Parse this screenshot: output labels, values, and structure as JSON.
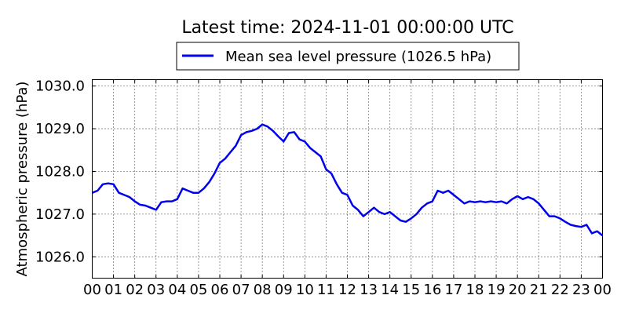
{
  "chart_data": {
    "type": "line",
    "title": "Latest time: 2024-11-01 00:00:00 UTC",
    "xlabel": "",
    "ylabel": "Atmospheric pressure (hPa)",
    "xlim": [
      0,
      24
    ],
    "ylim": [
      1025.5,
      1030.15
    ],
    "grid": true,
    "grid_style": "dotted",
    "legend_position": "top-center",
    "x_ticks": [
      0,
      1,
      2,
      3,
      4,
      5,
      6,
      7,
      8,
      9,
      10,
      11,
      12,
      13,
      14,
      15,
      16,
      17,
      18,
      19,
      20,
      21,
      22,
      23,
      24
    ],
    "x_tick_labels": [
      "00",
      "01",
      "02",
      "03",
      "04",
      "05",
      "06",
      "07",
      "08",
      "09",
      "10",
      "11",
      "12",
      "13",
      "14",
      "15",
      "16",
      "17",
      "18",
      "19",
      "20",
      "21",
      "22",
      "23",
      "00"
    ],
    "y_ticks": [
      1026.0,
      1027.0,
      1028.0,
      1029.0,
      1030.0
    ],
    "y_tick_labels": [
      "1026.0",
      "1027.0",
      "1028.0",
      "1029.0",
      "1030.0"
    ],
    "series": [
      {
        "name": "Mean sea level pressure (1026.5 hPa)",
        "color": "#0000ee",
        "x": [
          0,
          0.25,
          0.5,
          0.75,
          1.0,
          1.25,
          1.5,
          1.75,
          2.0,
          2.25,
          2.5,
          2.75,
          3.0,
          3.25,
          3.5,
          3.75,
          4.0,
          4.25,
          4.5,
          4.75,
          5.0,
          5.25,
          5.5,
          5.75,
          6.0,
          6.25,
          6.5,
          6.75,
          7.0,
          7.25,
          7.5,
          7.75,
          8.0,
          8.25,
          8.5,
          8.75,
          9.0,
          9.25,
          9.5,
          9.75,
          10.0,
          10.25,
          10.5,
          10.75,
          11.0,
          11.25,
          11.5,
          11.75,
          12.0,
          12.25,
          12.5,
          12.75,
          13.0,
          13.25,
          13.5,
          13.75,
          14.0,
          14.25,
          14.5,
          14.75,
          15.0,
          15.25,
          15.5,
          15.75,
          16.0,
          16.25,
          16.5,
          16.75,
          17.0,
          17.25,
          17.5,
          17.75,
          18.0,
          18.25,
          18.5,
          18.75,
          19.0,
          19.25,
          19.5,
          19.75,
          20.0,
          20.25,
          20.5,
          20.75,
          21.0,
          21.25,
          21.5,
          21.75,
          22.0,
          22.25,
          22.5,
          22.75,
          23.0,
          23.25,
          23.5,
          23.75,
          24.0
        ],
        "y": [
          1027.5,
          1027.55,
          1027.7,
          1027.72,
          1027.7,
          1027.5,
          1027.45,
          1027.4,
          1027.3,
          1027.22,
          1027.2,
          1027.15,
          1027.1,
          1027.28,
          1027.3,
          1027.3,
          1027.35,
          1027.6,
          1027.55,
          1027.5,
          1027.5,
          1027.6,
          1027.75,
          1027.95,
          1028.2,
          1028.3,
          1028.45,
          1028.6,
          1028.85,
          1028.92,
          1028.95,
          1029.0,
          1029.1,
          1029.05,
          1028.95,
          1028.82,
          1028.7,
          1028.9,
          1028.92,
          1028.75,
          1028.7,
          1028.55,
          1028.45,
          1028.35,
          1028.05,
          1027.95,
          1027.7,
          1027.5,
          1027.45,
          1027.2,
          1027.1,
          1026.95,
          1027.05,
          1027.15,
          1027.05,
          1027.0,
          1027.05,
          1026.95,
          1026.85,
          1026.82,
          1026.9,
          1027.0,
          1027.15,
          1027.25,
          1027.3,
          1027.55,
          1027.5,
          1027.55,
          1027.45,
          1027.35,
          1027.25,
          1027.3,
          1027.28,
          1027.3,
          1027.28,
          1027.3,
          1027.28,
          1027.3,
          1027.25,
          1027.35,
          1027.42,
          1027.35,
          1027.4,
          1027.35,
          1027.25,
          1027.1,
          1026.95,
          1026.95,
          1026.9,
          1026.82,
          1026.75,
          1026.72,
          1026.7,
          1026.75,
          1026.55,
          1026.6,
          1026.5
        ]
      }
    ]
  }
}
